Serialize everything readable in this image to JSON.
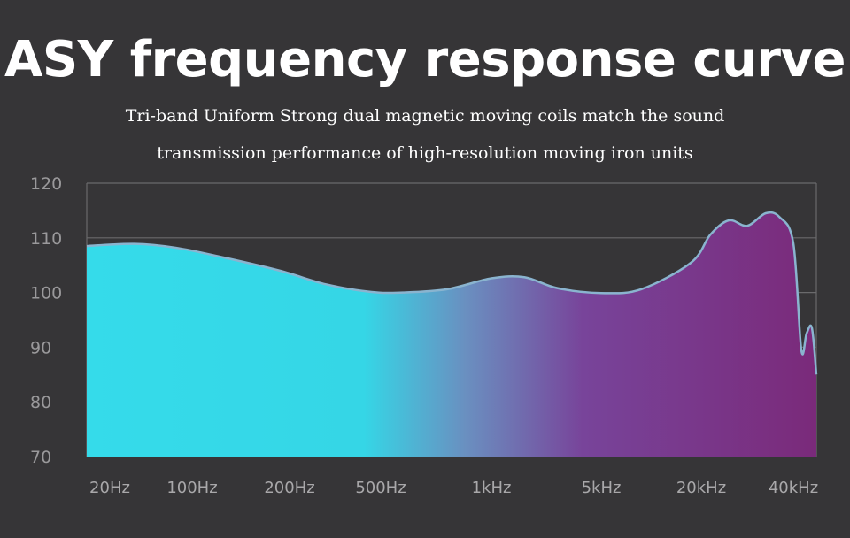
{
  "title": "ASY frequency response curve",
  "subtitle_line1": "Tri-band Uniform Strong dual magnetic moving coils match the sound",
  "subtitle_line2": "transmission performance of high-resolution moving iron units",
  "colors": {
    "background": "#363537",
    "gradient_start": "#35dbea",
    "gradient_end": "#7a2a7a",
    "curve_stroke": "#8ab4cf",
    "grid": "#6a6a6c"
  },
  "chart_data": {
    "type": "area",
    "title": "ASY frequency response curve",
    "xlabel": "",
    "ylabel": "",
    "ylim": [
      70,
      120
    ],
    "y_ticks": [
      120,
      110,
      100,
      90,
      80,
      70
    ],
    "x_categories": [
      "20Hz",
      "100Hz",
      "200Hz",
      "500Hz",
      "1kHz",
      "5kHz",
      "20kHz",
      "40kHz"
    ],
    "grid": true,
    "series": [
      {
        "x": [
          0,
          0.3,
          0.8,
          1.3,
          1.9,
          2.4,
          2.9,
          3.2,
          3.6,
          4.0,
          4.3,
          4.6,
          5.0,
          5.4,
          5.9,
          6.1,
          6.3,
          6.5,
          6.7,
          6.85,
          7.0,
          7.3,
          7.5,
          7.7,
          7.9
        ],
        "y": [
          108.5,
          108.9,
          108.2,
          106.5,
          104,
          101.5,
          100.1,
          100,
          100.6,
          102.6,
          102.8,
          100.8,
          99.9,
          100.6,
          105.5,
          110.6,
          113.2,
          112.2,
          114.5,
          113.8,
          109,
          89.5,
          92.5,
          93.5,
          85
        ]
      }
    ]
  }
}
